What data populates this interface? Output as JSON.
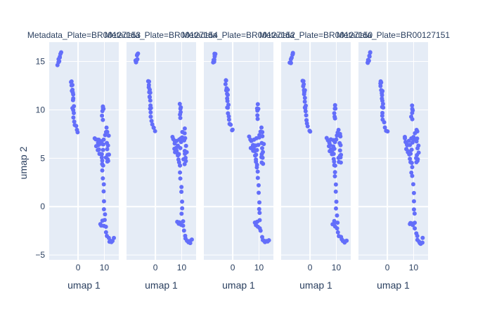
{
  "chart_data": {
    "type": "scatter",
    "facet_label_prefix": "Metadata_Plate=",
    "facets": [
      "BR00127153",
      "BR00127154",
      "BR00127152",
      "BR00127150",
      "BR00127151"
    ],
    "xlabel": "umap 1",
    "ylabel": "umap 2",
    "xlim": [
      -11,
      15.5
    ],
    "ylim": [
      -5.5,
      17
    ],
    "xticks": [
      0,
      10
    ],
    "yticks": [
      -5,
      0,
      5,
      10,
      15
    ],
    "grid": true,
    "marker_color": "#636efa",
    "plot_bgcolor": "#e5ecf6",
    "shared_points": [
      [
        -7.6,
        14.8
      ],
      [
        -7.4,
        15.0
      ],
      [
        -7.2,
        15.2
      ],
      [
        -7.0,
        15.4
      ],
      [
        -6.9,
        15.6
      ],
      [
        -6.7,
        15.8
      ],
      [
        -6.5,
        15.9
      ],
      [
        -7.3,
        14.9
      ],
      [
        -2.6,
        13.0
      ],
      [
        -2.5,
        12.7
      ],
      [
        -2.4,
        12.4
      ],
      [
        -2.3,
        12.1
      ],
      [
        -2.2,
        11.8
      ],
      [
        -2.1,
        11.5
      ],
      [
        -2.0,
        11.2
      ],
      [
        -1.9,
        10.9
      ],
      [
        -1.8,
        10.5
      ],
      [
        -1.8,
        10.1
      ],
      [
        -1.7,
        9.7
      ],
      [
        -1.7,
        9.3
      ],
      [
        -1.6,
        8.9
      ],
      [
        -1.3,
        8.6
      ],
      [
        -0.8,
        8.3
      ],
      [
        -0.4,
        8.0
      ],
      [
        0.0,
        7.8
      ],
      [
        -2.4,
        12.9
      ],
      [
        -2.0,
        11.9
      ],
      [
        -1.9,
        10.2
      ],
      [
        6.5,
        7.2
      ],
      [
        6.8,
        7.0
      ],
      [
        7.2,
        6.8
      ],
      [
        7.5,
        6.5
      ],
      [
        7.8,
        6.2
      ],
      [
        8.0,
        5.9
      ],
      [
        8.3,
        5.6
      ],
      [
        8.5,
        5.3
      ],
      [
        8.8,
        5.0
      ],
      [
        9.0,
        4.7
      ],
      [
        9.2,
        4.4
      ],
      [
        9.4,
        4.1
      ],
      [
        9.0,
        5.5
      ],
      [
        9.3,
        6.0
      ],
      [
        9.6,
        6.5
      ],
      [
        9.9,
        7.0
      ],
      [
        10.2,
        7.3
      ],
      [
        10.5,
        7.6
      ],
      [
        8.0,
        6.8
      ],
      [
        8.6,
        6.4
      ],
      [
        9.1,
        6.9
      ],
      [
        7.1,
        6.1
      ],
      [
        7.6,
        5.7
      ],
      [
        10.8,
        5.0
      ],
      [
        11.0,
        4.5
      ],
      [
        11.2,
        5.4
      ],
      [
        9.5,
        10.5
      ],
      [
        9.3,
        10.2
      ],
      [
        9.7,
        10.1
      ],
      [
        9.4,
        9.8
      ],
      [
        9.2,
        9.4
      ],
      [
        9.6,
        9.0
      ],
      [
        11.0,
        8.0
      ],
      [
        11.3,
        7.6
      ],
      [
        11.5,
        7.2
      ],
      [
        11.2,
        6.7
      ],
      [
        11.6,
        6.3
      ],
      [
        11.3,
        5.9
      ],
      [
        11.7,
        5.5
      ],
      [
        11.4,
        5.0
      ],
      [
        11.5,
        4.6
      ],
      [
        9.3,
        3.6
      ],
      [
        9.5,
        3.0
      ],
      [
        9.8,
        2.2
      ],
      [
        9.9,
        1.4
      ],
      [
        10.1,
        0.6
      ],
      [
        10.0,
        -0.2
      ],
      [
        10.2,
        -0.8
      ],
      [
        10.3,
        -1.5
      ],
      [
        10.5,
        -2.1
      ],
      [
        10.8,
        -2.6
      ],
      [
        11.2,
        -3.0
      ],
      [
        11.6,
        -3.3
      ],
      [
        12.0,
        -3.5
      ],
      [
        12.4,
        -3.6
      ],
      [
        12.8,
        -3.7
      ],
      [
        13.3,
        -3.6
      ],
      [
        13.7,
        -3.4
      ],
      [
        8.5,
        -1.7
      ],
      [
        8.9,
        -1.8
      ],
      [
        9.3,
        -1.6
      ],
      [
        9.6,
        -1.9
      ]
    ]
  }
}
